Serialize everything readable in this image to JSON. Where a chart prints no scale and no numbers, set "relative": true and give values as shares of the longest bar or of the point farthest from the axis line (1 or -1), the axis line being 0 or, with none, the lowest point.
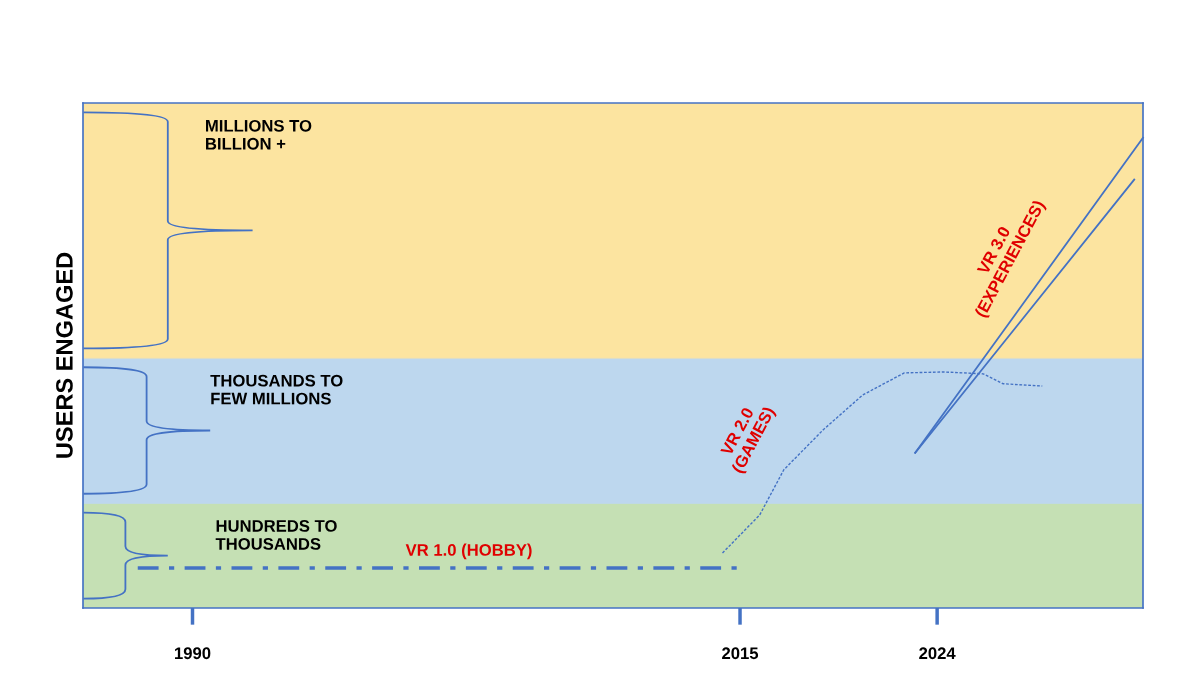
{
  "chart_data": {
    "type": "line",
    "relative": true,
    "ylabel": "USERS ENGAGED",
    "xlim": [
      1985,
      2033.4
    ],
    "xticks": [
      1990,
      2015,
      2024
    ],
    "bands": [
      {
        "axis": "y",
        "from": 0,
        "to": 0.223,
        "label": "HUNDREDS TO\nTHOUSANDS",
        "color": "#c5e0b4"
      },
      {
        "axis": "y",
        "from": 0.223,
        "to": 0.532,
        "label": "THOUSANDS TO\nFEW MILLIONS",
        "color": "#bdd7ee"
      },
      {
        "axis": "y",
        "from": 0.532,
        "to": 1.074,
        "label": "MILLIONS TO\nBILLION +",
        "color": "#fce4a0"
      }
    ],
    "series": [
      {
        "name": "VR 1.0 (HOBBY)",
        "color": "#4472c4",
        "line_style": "dashed",
        "x": [
          1987.5,
          2015
        ],
        "values": [
          0.085,
          0.085
        ]
      },
      {
        "name": "VR 2.0\n(GAMES)",
        "color": "#4472c4",
        "line_style": "dotted",
        "x": [
          2014.2,
          2015.9,
          2017.0,
          2018.8,
          2020.6,
          2022.5,
          2024.3,
          2026.1,
          2027.0,
          2028.8
        ],
        "values": [
          0.117,
          0.198,
          0.294,
          0.379,
          0.453,
          0.5,
          0.502,
          0.498,
          0.477,
          0.472
        ]
      },
      {
        "name": "VR 3.0\n(EXPERIENCES)",
        "color": "#4472c4",
        "line_style": "solid",
        "x": [
          2023.0,
          2033.4
        ],
        "values": [
          0.33,
          1
        ]
      },
      {
        "color": "#4472c4",
        "line_style": "solid",
        "x": [
          2023.0,
          2033.0
        ],
        "values": [
          0.33,
          0.911
        ]
      }
    ],
    "grid": false,
    "legend": false
  }
}
